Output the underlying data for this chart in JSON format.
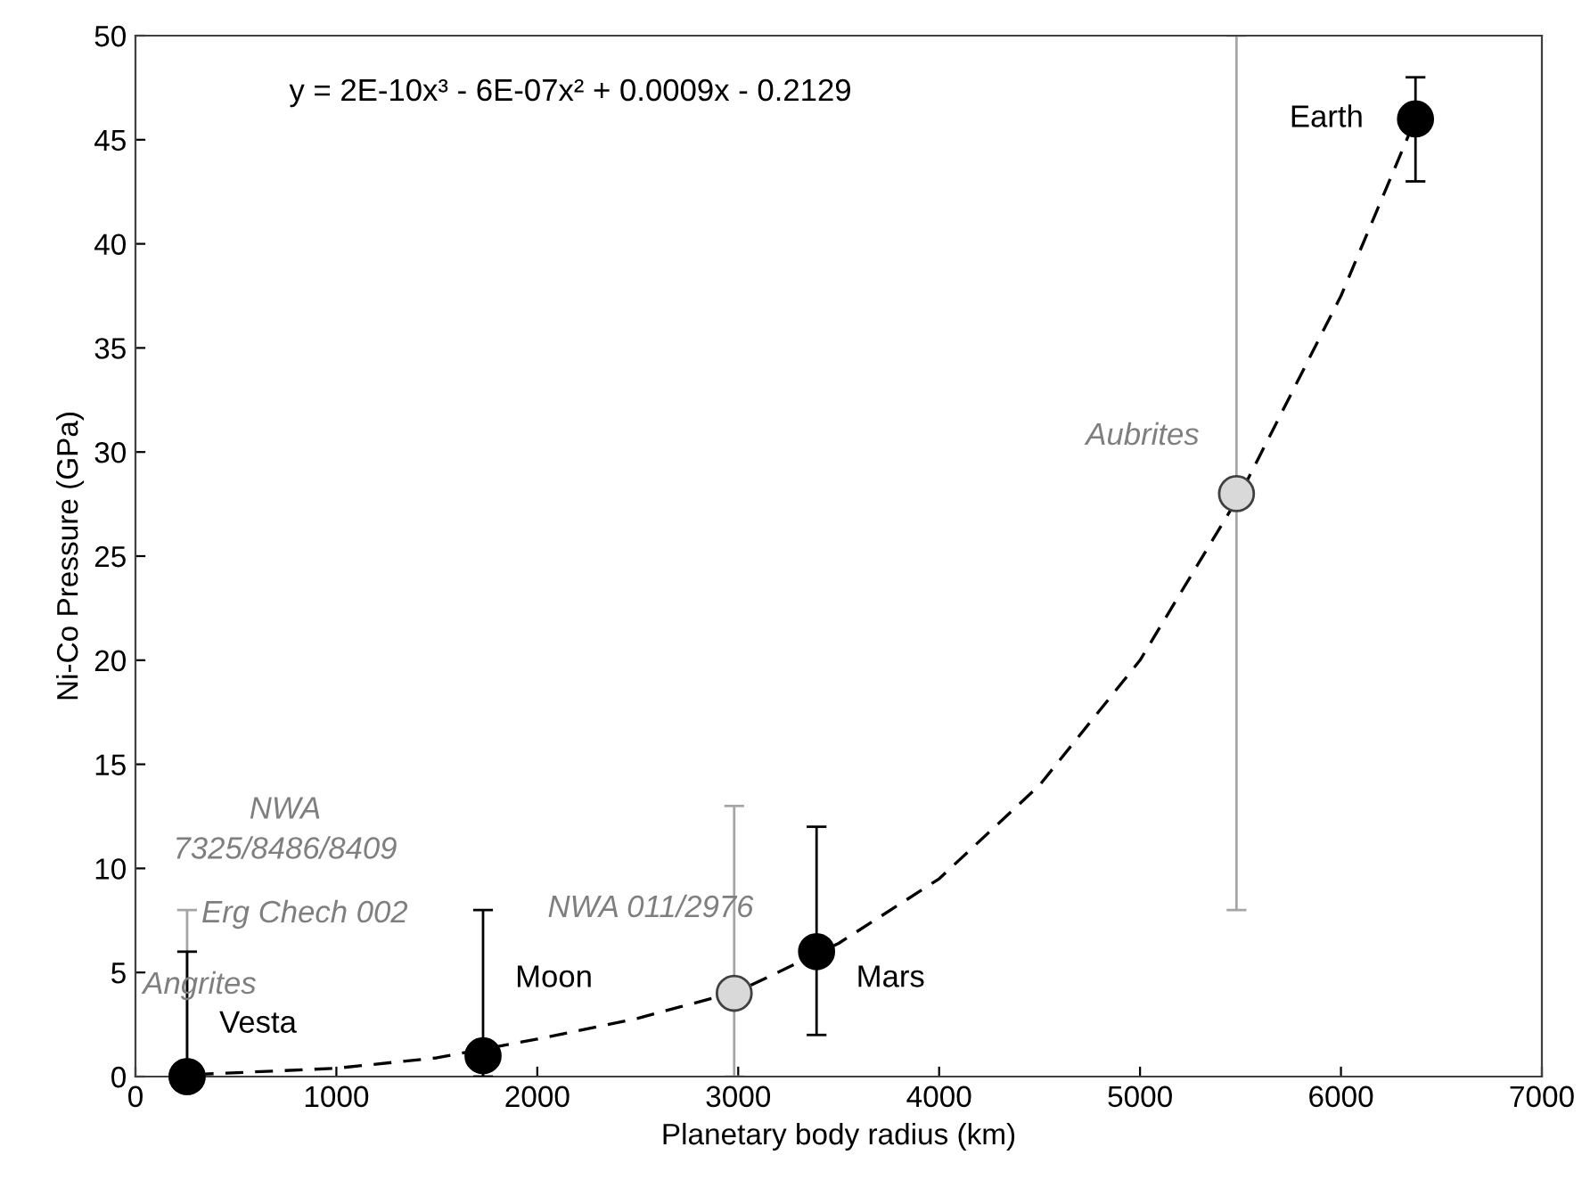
{
  "chart_data": {
    "type": "scatter",
    "xlabel": "Planetary body radius (km)",
    "ylabel": "Ni-Co Pressure (GPa)",
    "xlim": [
      0,
      7000
    ],
    "xticks": [
      0,
      1000,
      2000,
      3000,
      4000,
      5000,
      6000,
      7000
    ],
    "ylim": [
      0,
      50
    ],
    "yticks": [
      0,
      5,
      10,
      15,
      20,
      25,
      30,
      35,
      40,
      45,
      50
    ],
    "grid": false,
    "legend": false,
    "series": [
      {
        "type": "line",
        "color": "#000000",
        "line_style": "dashed",
        "marker": "none",
        "x": [
          300,
          1000,
          1500,
          2000,
          2500,
          3000,
          3500,
          4000,
          4500,
          5000,
          5500,
          6000,
          6371
        ],
        "values": [
          0.1,
          0.4,
          0.9,
          1.8,
          2.8,
          4.1,
          6.4,
          9.5,
          14,
          20,
          28,
          37.5,
          46
        ]
      },
      {
        "color": "#d9d9d9",
        "marker": "circle",
        "x": [
          257,
          2980,
          5480
        ],
        "values": [
          0,
          4,
          28
        ],
        "errors": [
          [
            0,
            8
          ],
          [
            0,
            13
          ],
          [
            8,
            50
          ]
        ]
      },
      {
        "color": "#000000",
        "marker": "circle",
        "x": [
          257,
          1730,
          3390,
          6371
        ],
        "values": [
          0,
          1,
          6,
          46
        ],
        "errors": [
          [
            0,
            6
          ],
          [
            0,
            8
          ],
          [
            2,
            12
          ],
          [
            43,
            48
          ]
        ]
      }
    ],
    "annotations": [
      "y = 2E-10x³ - 6E-07x² + 0.0009x - 0.2129",
      "Angrites",
      "Erg Chech 002",
      "NWA\n7325/8486/8409",
      {
        "text": "Vesta",
        "x": 257,
        "y": 0
      },
      {
        "text": "Moon",
        "x": 1730,
        "y": 1
      },
      "NWA 011/2976",
      {
        "text": "Mars",
        "x": 3390,
        "y": 6
      },
      {
        "text": "Aubrites",
        "x": 5480,
        "y": 28
      },
      {
        "text": "Earth",
        "x": 6371,
        "y": 46
      }
    ]
  }
}
